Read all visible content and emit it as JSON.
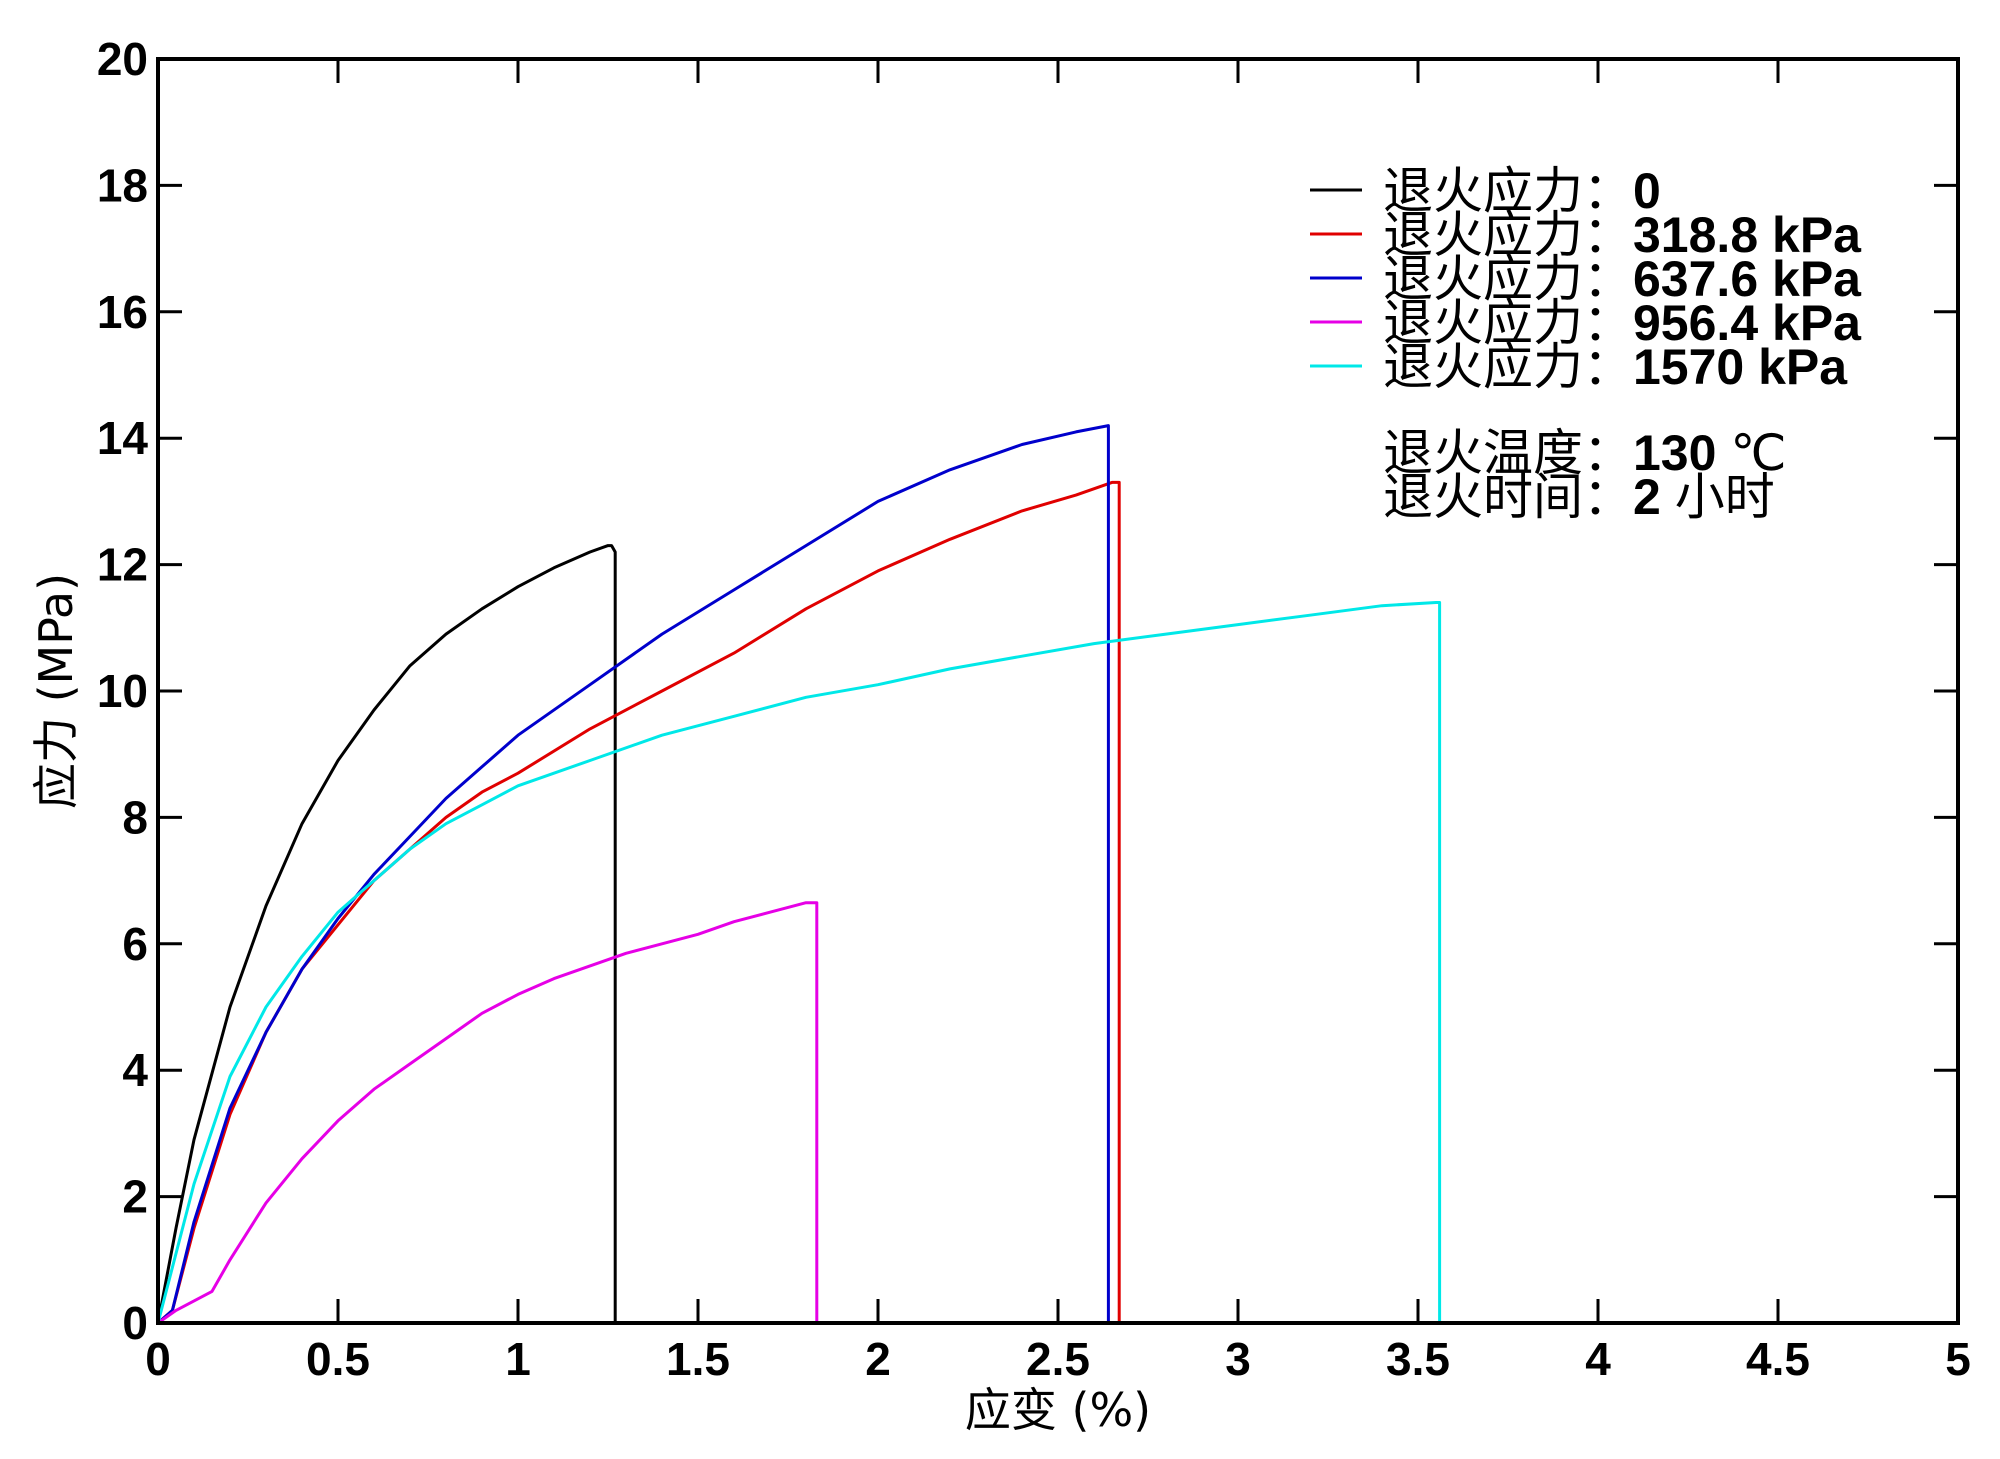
{
  "chart_data": {
    "type": "line",
    "xlabel": "应变 (%)",
    "ylabel": "应力 (MPa)",
    "xlim": [
      0,
      5
    ],
    "ylim": [
      0,
      20
    ],
    "x_ticks": [
      "0",
      "0.5",
      "1",
      "1.5",
      "2",
      "2.5",
      "3",
      "3.5",
      "4",
      "4.5",
      "5"
    ],
    "y_ticks": [
      "0",
      "2",
      "4",
      "6",
      "8",
      "10",
      "12",
      "14",
      "16",
      "18",
      "20"
    ],
    "grid": false,
    "legend_position": "top-right",
    "series": [
      {
        "name": "退火应力：0",
        "label_prefix": "退火应力：",
        "label_value": "0",
        "color": "#000000",
        "points": [
          [
            0,
            0
          ],
          [
            0.05,
            1.5
          ],
          [
            0.1,
            2.9
          ],
          [
            0.2,
            5.0
          ],
          [
            0.3,
            6.6
          ],
          [
            0.4,
            7.9
          ],
          [
            0.5,
            8.9
          ],
          [
            0.6,
            9.7
          ],
          [
            0.7,
            10.4
          ],
          [
            0.8,
            10.9
          ],
          [
            0.9,
            11.3
          ],
          [
            1.0,
            11.65
          ],
          [
            1.1,
            11.95
          ],
          [
            1.2,
            12.2
          ],
          [
            1.25,
            12.3
          ],
          [
            1.26,
            12.3
          ],
          [
            1.27,
            12.2
          ],
          [
            1.27,
            0
          ]
        ]
      },
      {
        "name": "退火应力：318.8 kPa",
        "label_prefix": "退火应力：",
        "label_value": "318.8 kPa",
        "color": "#e00000",
        "points": [
          [
            0,
            0
          ],
          [
            0.04,
            0.2
          ],
          [
            0.1,
            1.5
          ],
          [
            0.2,
            3.3
          ],
          [
            0.3,
            4.6
          ],
          [
            0.4,
            5.6
          ],
          [
            0.5,
            6.3
          ],
          [
            0.6,
            7.0
          ],
          [
            0.7,
            7.5
          ],
          [
            0.8,
            8.0
          ],
          [
            0.9,
            8.4
          ],
          [
            1.0,
            8.7
          ],
          [
            1.2,
            9.4
          ],
          [
            1.4,
            10.0
          ],
          [
            1.6,
            10.6
          ],
          [
            1.8,
            11.3
          ],
          [
            2.0,
            11.9
          ],
          [
            2.2,
            12.4
          ],
          [
            2.4,
            12.85
          ],
          [
            2.55,
            13.1
          ],
          [
            2.65,
            13.3
          ],
          [
            2.67,
            13.3
          ],
          [
            2.67,
            0
          ]
        ]
      },
      {
        "name": "退火应力：637.6 kPa",
        "label_prefix": "退火应力：",
        "label_value": "637.6 kPa",
        "color": "#0000cc",
        "points": [
          [
            0,
            0
          ],
          [
            0.04,
            0.2
          ],
          [
            0.1,
            1.6
          ],
          [
            0.2,
            3.4
          ],
          [
            0.3,
            4.6
          ],
          [
            0.4,
            5.6
          ],
          [
            0.5,
            6.4
          ],
          [
            0.6,
            7.1
          ],
          [
            0.7,
            7.7
          ],
          [
            0.8,
            8.3
          ],
          [
            0.9,
            8.8
          ],
          [
            1.0,
            9.3
          ],
          [
            1.2,
            10.1
          ],
          [
            1.4,
            10.9
          ],
          [
            1.6,
            11.6
          ],
          [
            1.8,
            12.3
          ],
          [
            2.0,
            13.0
          ],
          [
            2.2,
            13.5
          ],
          [
            2.4,
            13.9
          ],
          [
            2.55,
            14.1
          ],
          [
            2.64,
            14.2
          ],
          [
            2.64,
            0
          ]
        ]
      },
      {
        "name": "退火应力：956.4 kPa",
        "label_prefix": "退火应力：",
        "label_value": "956.4 kPa",
        "color": "#e600e6",
        "points": [
          [
            0,
            0
          ],
          [
            0.05,
            0.2
          ],
          [
            0.15,
            0.5
          ],
          [
            0.2,
            1.0
          ],
          [
            0.3,
            1.9
          ],
          [
            0.4,
            2.6
          ],
          [
            0.5,
            3.2
          ],
          [
            0.6,
            3.7
          ],
          [
            0.7,
            4.1
          ],
          [
            0.8,
            4.5
          ],
          [
            0.9,
            4.9
          ],
          [
            1.0,
            5.2
          ],
          [
            1.1,
            5.45
          ],
          [
            1.2,
            5.65
          ],
          [
            1.3,
            5.85
          ],
          [
            1.4,
            6.0
          ],
          [
            1.5,
            6.15
          ],
          [
            1.6,
            6.35
          ],
          [
            1.7,
            6.5
          ],
          [
            1.8,
            6.65
          ],
          [
            1.83,
            6.65
          ],
          [
            1.83,
            0
          ]
        ]
      },
      {
        "name": "退火应力：1570 kPa",
        "label_prefix": "退火应力：",
        "label_value": "1570 kPa",
        "color": "#00e8e8",
        "points": [
          [
            0,
            0
          ],
          [
            0.05,
            1.1
          ],
          [
            0.1,
            2.2
          ],
          [
            0.2,
            3.9
          ],
          [
            0.3,
            5.0
          ],
          [
            0.4,
            5.8
          ],
          [
            0.5,
            6.5
          ],
          [
            0.6,
            7.0
          ],
          [
            0.7,
            7.5
          ],
          [
            0.8,
            7.9
          ],
          [
            0.9,
            8.2
          ],
          [
            1.0,
            8.5
          ],
          [
            1.2,
            8.9
          ],
          [
            1.4,
            9.3
          ],
          [
            1.6,
            9.6
          ],
          [
            1.8,
            9.9
          ],
          [
            2.0,
            10.1
          ],
          [
            2.2,
            10.35
          ],
          [
            2.4,
            10.55
          ],
          [
            2.6,
            10.75
          ],
          [
            2.8,
            10.9
          ],
          [
            3.0,
            11.05
          ],
          [
            3.2,
            11.2
          ],
          [
            3.4,
            11.35
          ],
          [
            3.55,
            11.4
          ],
          [
            3.56,
            11.4
          ],
          [
            3.56,
            0
          ]
        ]
      }
    ],
    "annotations": [
      {
        "label": "退火温度：",
        "value": "130",
        "unit": "℃"
      },
      {
        "label": "退火时间：",
        "value": "2",
        "unit": "小时"
      }
    ]
  }
}
